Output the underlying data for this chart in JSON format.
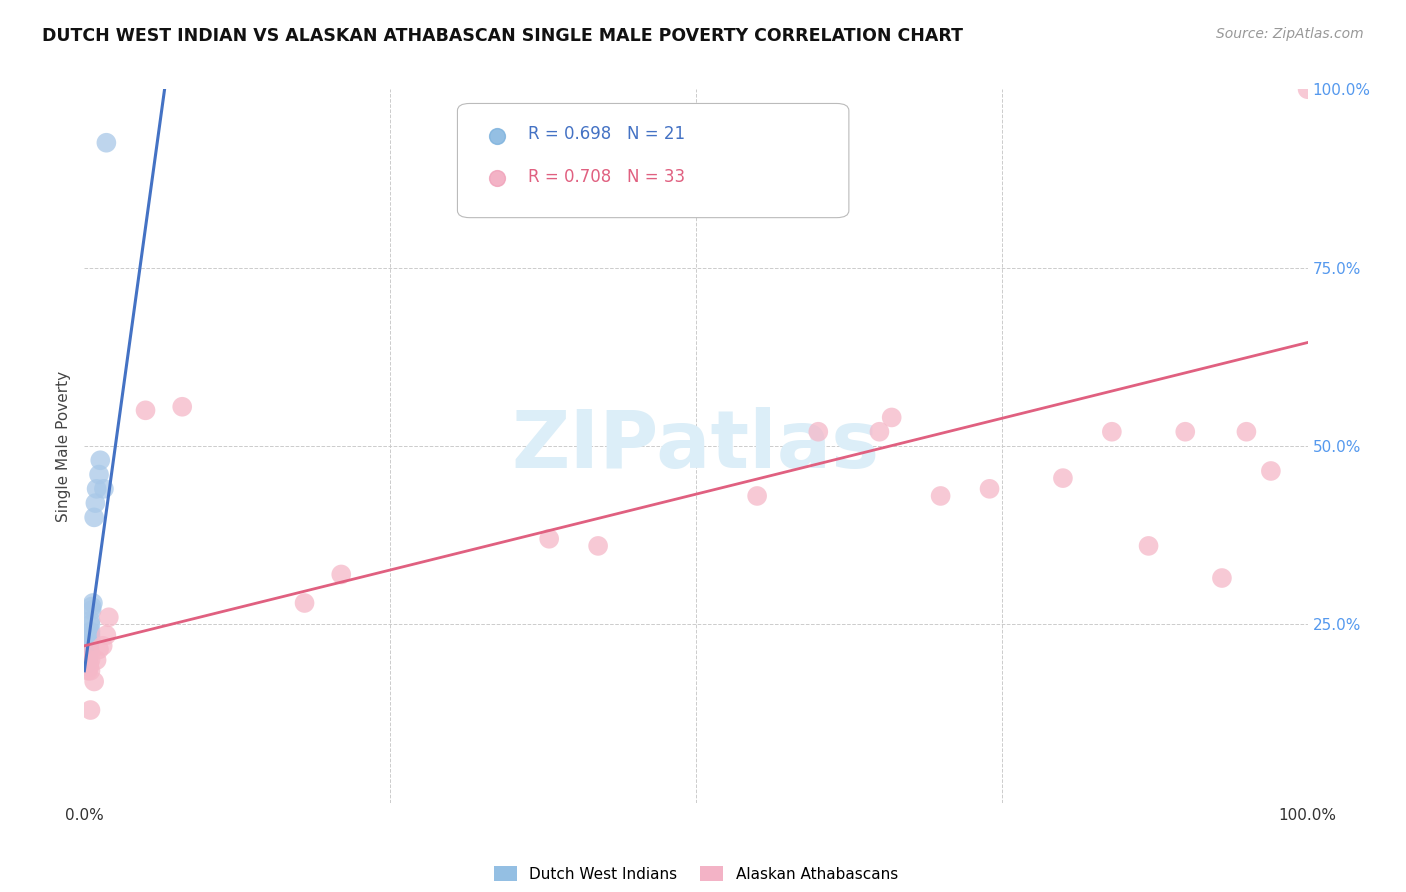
{
  "title": "DUTCH WEST INDIAN VS ALASKAN ATHABASCAN SINGLE MALE POVERTY CORRELATION CHART",
  "source": "Source: ZipAtlas.com",
  "ylabel": "Single Male Poverty",
  "blue_label": "Dutch West Indians",
  "pink_label": "Alaskan Athabascans",
  "blue_R": "R = 0.698",
  "blue_N": "N = 21",
  "pink_R": "R = 0.708",
  "pink_N": "N = 33",
  "background_color": "#ffffff",
  "blue_color": "#a8c8e8",
  "pink_color": "#f5b8c8",
  "blue_line_color": "#4472c4",
  "pink_line_color": "#e06080",
  "blue_legend_color": "#7ab0dc",
  "pink_legend_color": "#f0a0b8",
  "watermark_color": "#dceef8",
  "grid_color": "#cccccc",
  "blue_points_x": [
    0.002,
    0.003,
    0.003,
    0.004,
    0.004,
    0.004,
    0.005,
    0.005,
    0.005,
    0.005,
    0.005,
    0.006,
    0.006,
    0.007,
    0.008,
    0.009,
    0.01,
    0.012,
    0.013,
    0.016,
    0.018
  ],
  "blue_points_y": [
    0.195,
    0.2,
    0.21,
    0.215,
    0.22,
    0.225,
    0.23,
    0.235,
    0.24,
    0.25,
    0.255,
    0.27,
    0.275,
    0.28,
    0.4,
    0.42,
    0.44,
    0.46,
    0.48,
    0.44,
    0.925
  ],
  "pink_points_x": [
    0.003,
    0.004,
    0.004,
    0.005,
    0.005,
    0.005,
    0.005,
    0.008,
    0.01,
    0.012,
    0.015,
    0.018,
    0.02,
    0.05,
    0.08,
    0.18,
    0.21,
    0.38,
    0.42,
    0.55,
    0.6,
    0.65,
    0.66,
    0.7,
    0.74,
    0.8,
    0.84,
    0.87,
    0.9,
    0.93,
    0.95,
    0.97,
    1.0
  ],
  "pink_points_y": [
    0.185,
    0.19,
    0.195,
    0.13,
    0.185,
    0.2,
    0.21,
    0.17,
    0.2,
    0.215,
    0.22,
    0.235,
    0.26,
    0.55,
    0.555,
    0.28,
    0.32,
    0.37,
    0.36,
    0.43,
    0.52,
    0.52,
    0.54,
    0.43,
    0.44,
    0.455,
    0.52,
    0.36,
    0.52,
    0.315,
    0.52,
    0.465,
    1.0
  ],
  "blue_line_x": [
    0.0,
    0.068
  ],
  "blue_line_y": [
    0.185,
    1.03
  ],
  "pink_line_x": [
    0.0,
    1.0
  ],
  "pink_line_y": [
    0.22,
    0.645
  ],
  "xlim": [
    0,
    1.0
  ],
  "ylim": [
    0,
    1.0
  ],
  "xticks": [
    0.0,
    0.25,
    0.5,
    0.75,
    1.0
  ],
  "xtick_labels": [
    "0.0%",
    "",
    "",
    "",
    "100.0%"
  ],
  "ytick_right": [
    0.25,
    0.5,
    0.75,
    1.0
  ],
  "ytick_right_labels": [
    "25.0%",
    "50.0%",
    "75.0%",
    "100.0%"
  ]
}
